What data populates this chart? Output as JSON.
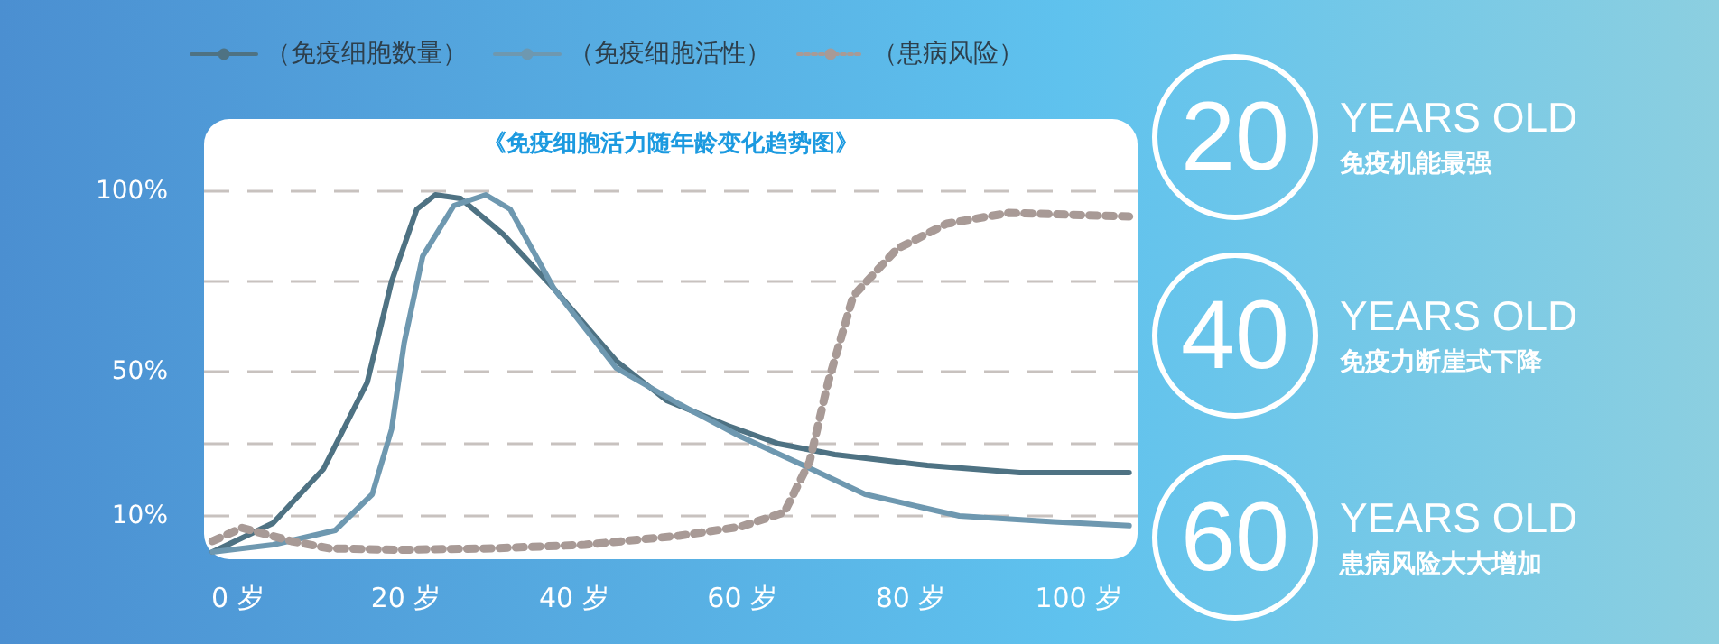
{
  "chart_data": {
    "type": "line",
    "title": "《免疫细胞活力随年龄变化趋势图》",
    "xlim": [
      -4,
      107
    ],
    "xticks": [
      {
        "value": 0,
        "label": "0 岁"
      },
      {
        "value": 20,
        "label": "20 岁"
      },
      {
        "value": 40,
        "label": "40 岁"
      },
      {
        "value": 60,
        "label": "60 岁"
      },
      {
        "value": 80,
        "label": "80 岁"
      },
      {
        "value": 100,
        "label": "100 岁"
      }
    ],
    "ylim": [
      -2,
      120
    ],
    "yticks": [
      {
        "value": 10,
        "label": "10%"
      },
      {
        "value": 30,
        "label": null
      },
      {
        "value": 50,
        "label": "50%"
      },
      {
        "value": 75,
        "label": null
      },
      {
        "value": 100,
        "label": "100%"
      }
    ],
    "grid": "y",
    "legend": "top",
    "marker": "none",
    "series": [
      {
        "name": "（免疫细胞数量）",
        "color": "#4e7283",
        "line_style": "solid",
        "x": [
          -3,
          4.2,
          10.2,
          15.4,
          18.3,
          21.3,
          23.5,
          26.5,
          31.6,
          37.6,
          45,
          51,
          58.3,
          64.3,
          71,
          82,
          93,
          106
        ],
        "values": [
          0,
          8,
          23,
          47,
          75,
          95,
          99,
          98,
          88,
          73,
          53,
          42,
          35,
          30,
          27,
          24,
          22,
          22
        ]
      },
      {
        "name": "（免疫细胞活性）",
        "color": "#6e98b0",
        "line_style": "solid",
        "x": [
          -3,
          4.2,
          11.6,
          16,
          18.3,
          19.8,
          22,
          25.7,
          29.5,
          32.4,
          37.6,
          45,
          52.5,
          59.8,
          67.3,
          74.6,
          85.8,
          97,
          106
        ],
        "values": [
          0,
          2,
          6,
          16,
          34,
          58,
          82,
          96,
          99,
          95,
          73,
          51,
          41,
          32,
          24,
          16,
          10,
          8.4,
          7.3
        ]
      },
      {
        "name": "（患病风险）",
        "color": "#a89a96",
        "line_style": "dotted",
        "x": [
          -3,
          0.5,
          6.4,
          10.9,
          19,
          30.2,
          41.3,
          52.5,
          59.8,
          65,
          68,
          70.2,
          73.2,
          78.4,
          84.3,
          91.7,
          106
        ],
        "values": [
          3,
          6.7,
          3,
          1,
          0.6,
          1,
          2,
          4.5,
          7,
          11,
          25,
          47,
          71,
          84,
          91,
          94,
          93
        ]
      }
    ],
    "annotations": [
      "20",
      "YEARS OLD",
      "免疫机能最强",
      "40",
      "YEARS OLD",
      "免疫力断崖式下降",
      "60",
      "YEARS OLD",
      "患病风险大大增加"
    ]
  }
}
